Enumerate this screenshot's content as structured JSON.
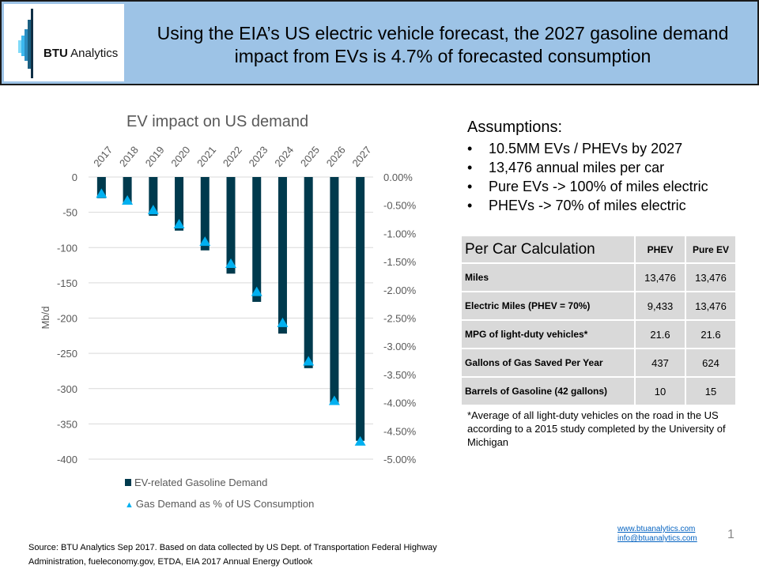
{
  "header": {
    "logo_text_bold": "BTU",
    "logo_text": "Analytics",
    "title": "Using the EIA’s US electric vehicle forecast, the 2027 gasoline demand impact from EVs is 4.7% of forecasted consumption"
  },
  "chart_data": {
    "type": "bar+scatter",
    "title": "EV impact on US demand",
    "ylabel": "Mb/d",
    "categories": [
      "2017",
      "2018",
      "2019",
      "2020",
      "2021",
      "2022",
      "2023",
      "2024",
      "2025",
      "2026",
      "2027"
    ],
    "ylim": [
      -400,
      0
    ],
    "yticks": [
      "0",
      "-50",
      "-100",
      "-150",
      "-200",
      "-250",
      "-300",
      "-350",
      "-400"
    ],
    "y2lim": [
      -5.0,
      0.0
    ],
    "y2ticks": [
      "0.00%",
      "-0.50%",
      "-1.00%",
      "-1.50%",
      "-2.00%",
      "-2.50%",
      "-3.00%",
      "-3.50%",
      "-4.00%",
      "-4.50%",
      "-5.00%"
    ],
    "grid": true,
    "legend_position": "bottom",
    "series": [
      {
        "name": "EV-related Gasoline Demand",
        "type": "bar",
        "axis": "left",
        "color": "#003a4d",
        "values": [
          -30,
          -39,
          -55,
          -76,
          -104,
          -137,
          -177,
          -222,
          -271,
          -320,
          -374
        ]
      },
      {
        "name": "Gas Demand as % of US Consumption",
        "type": "scatter",
        "marker": "triangle",
        "axis": "right",
        "color": "#00b0f0",
        "values": [
          -0.3,
          -0.42,
          -0.59,
          -0.84,
          -1.15,
          -1.54,
          -2.04,
          -2.59,
          -3.27,
          -3.97,
          -4.69
        ]
      }
    ]
  },
  "assumptions": {
    "title": "Assumptions:",
    "items": [
      "10.5MM EVs / PHEVs by 2027",
      "13,476 annual miles per car",
      "Pure EVs -> 100% of miles electric",
      "PHEVs -> 70% of miles electric"
    ]
  },
  "table": {
    "headers": [
      "Per Car Calculation",
      "PHEV",
      "Pure EV"
    ],
    "rows": [
      [
        "Miles",
        "13,476",
        "13,476"
      ],
      [
        "Electric Miles (PHEV = 70%)",
        "9,433",
        "13,476"
      ],
      [
        "MPG of light-duty vehicles*",
        "21.6",
        "21.6"
      ],
      [
        "Gallons of Gas Saved Per Year",
        "437",
        "624"
      ],
      [
        "Barrels of Gasoline (42 gallons)",
        "10",
        "15"
      ]
    ]
  },
  "footnote": "*Average of all light-duty vehicles on the road in the US according to a 2015  study completed by the University of Michigan",
  "source": "Source: BTU Analytics Sep 2017. Based on data collected by US Dept. of Transportation Federal Highway Administration, fueleconomy.gov, ETDA,  EIA 2017 Annual Energy Outlook",
  "links": {
    "website": "www.btuanalytics.com",
    "email": "info@btuanalytics.com"
  },
  "page_number": "1"
}
